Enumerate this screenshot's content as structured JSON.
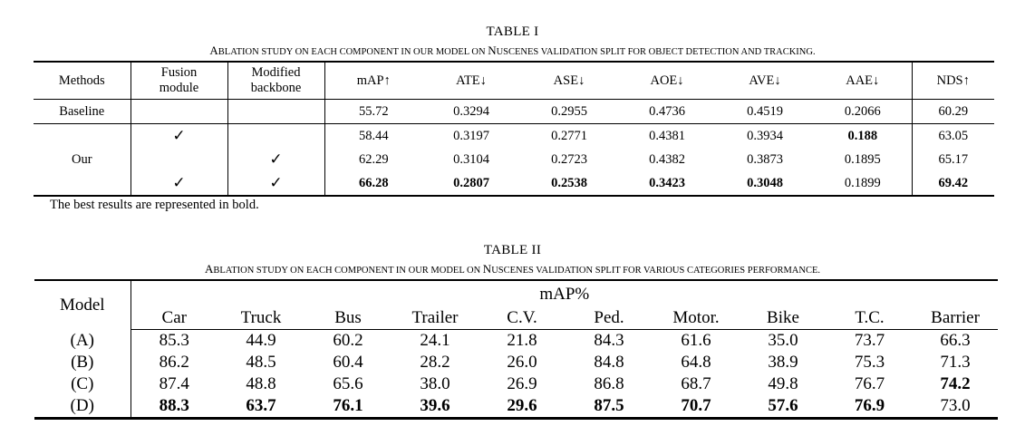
{
  "table1": {
    "number": "TABLE I",
    "title_parts": [
      {
        "t": "A",
        "sc": false
      },
      {
        "t": "BLATION STUDY ON EACH COMPONENT IN OUR MODEL ON ",
        "sc": true
      },
      {
        "t": "N",
        "sc": false
      },
      {
        "t": "USCENES VALIDATION SPLIT FOR OBJECT DETECTION AND TRACKING.",
        "sc": true
      }
    ],
    "headers": {
      "methods": "Methods",
      "fusion_1": "Fusion",
      "fusion_2": "module",
      "backbone_1": "Modified",
      "backbone_2": "backbone",
      "map": "mAP↑",
      "ate": "ATE↓",
      "ase": "ASE↓",
      "aoe": "AOE↓",
      "ave": "AVE↓",
      "aae": "AAE↓",
      "nds": "NDS↑"
    },
    "baseline": {
      "label": "Baseline",
      "values": [
        "55.72",
        "0.3294",
        "0.2955",
        "0.4736",
        "0.4519",
        "0.2066",
        "60.29"
      ]
    },
    "our_label": "Our",
    "check": "✓",
    "our_rows": [
      {
        "fusion": "✓",
        "backbone": "",
        "values": [
          "58.44",
          "0.3197",
          "0.2771",
          "0.4381",
          "0.3934",
          "0.188",
          "63.05"
        ]
      },
      {
        "fusion": "",
        "backbone": "✓",
        "values": [
          "62.29",
          "0.3104",
          "0.2723",
          "0.4382",
          "0.3873",
          "0.1895",
          "65.17"
        ]
      },
      {
        "fusion": "✓",
        "backbone": "✓",
        "values": [
          "66.28",
          "0.2807",
          "0.2538",
          "0.3423",
          "0.3048",
          "0.1899",
          "69.42"
        ]
      }
    ],
    "note": "The best results are represented in bold."
  },
  "table2": {
    "number": "TABLE II",
    "title_parts": [
      {
        "t": "A",
        "sc": false
      },
      {
        "t": "BLATION STUDY ON EACH COMPONENT IN OUR MODEL ON ",
        "sc": true
      },
      {
        "t": "N",
        "sc": false
      },
      {
        "t": "USCENES VALIDATION SPLIT FOR VARIOUS CATEGORIES PERFORMANCE.",
        "sc": true
      }
    ],
    "model_header": "Model",
    "metric_header": "mAP%",
    "categories": [
      "Car",
      "Truck",
      "Bus",
      "Trailer",
      "C.V.",
      "Ped.",
      "Motor.",
      "Bike",
      "T.C.",
      "Barrier"
    ],
    "rows": [
      {
        "model": "(A)",
        "values": [
          "85.3",
          "44.9",
          "60.2",
          "24.1",
          "21.8",
          "84.3",
          "61.6",
          "35.0",
          "73.7",
          "66.3"
        ]
      },
      {
        "model": "(B)",
        "values": [
          "86.2",
          "48.5",
          "60.4",
          "28.2",
          "26.0",
          "84.8",
          "64.8",
          "38.9",
          "75.3",
          "71.3"
        ]
      },
      {
        "model": "(C)",
        "values": [
          "87.4",
          "48.8",
          "65.6",
          "38.0",
          "26.9",
          "86.8",
          "68.7",
          "49.8",
          "76.7",
          "74.2"
        ]
      },
      {
        "model": "(D)",
        "values": [
          "88.3",
          "63.7",
          "76.1",
          "39.6",
          "29.6",
          "87.5",
          "70.7",
          "57.6",
          "76.9",
          "73.0"
        ]
      }
    ]
  }
}
